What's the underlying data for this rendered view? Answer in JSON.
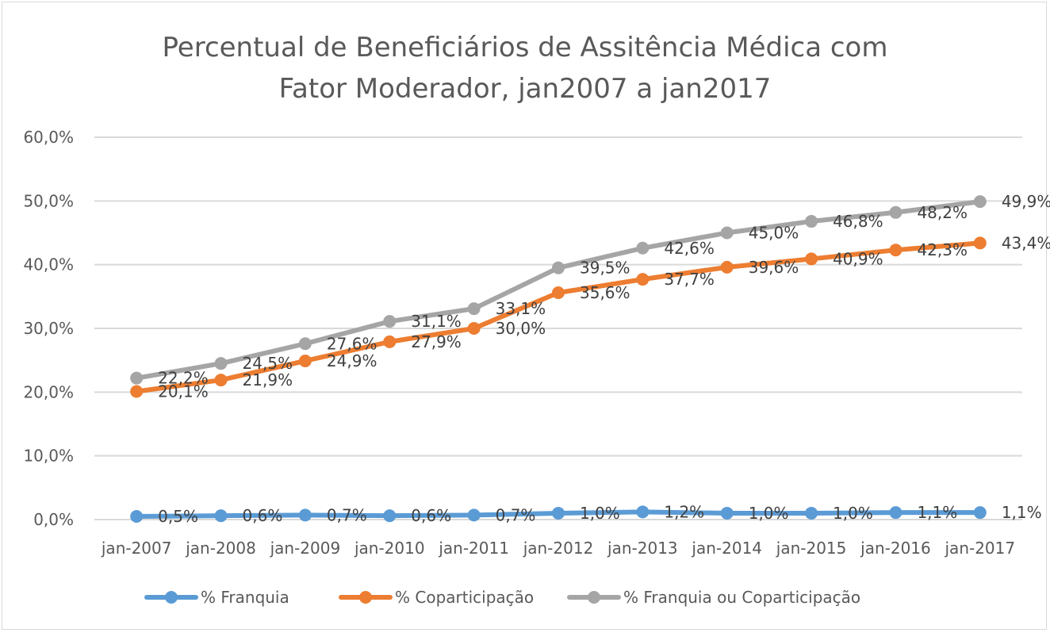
{
  "chart_data": {
    "type": "line",
    "title_lines": [
      "Percentual de Beneficiários de Assitência Médica com",
      "Fator Moderador, jan2007 a jan2017"
    ],
    "categories": [
      "jan-2007",
      "jan-2008",
      "jan-2009",
      "jan-2010",
      "jan-2011",
      "jan-2012",
      "jan-2013",
      "jan-2014",
      "jan-2015",
      "jan-2016",
      "jan-2017"
    ],
    "y_ticks": [
      "0,0%",
      "10,0%",
      "20,0%",
      "30,0%",
      "40,0%",
      "50,0%",
      "60,0%"
    ],
    "ylim": [
      0,
      60
    ],
    "grid": true,
    "legend_position": "bottom",
    "series": [
      {
        "name": "% Franquia",
        "color": "#5B9BD5",
        "values": [
          0.5,
          0.6,
          0.7,
          0.6,
          0.7,
          1.0,
          1.2,
          1.0,
          1.0,
          1.1,
          1.1
        ],
        "labels": [
          "0,5%",
          "0,6%",
          "0,7%",
          "0,6%",
          "0,7%",
          "1,0%",
          "1,2%",
          "1,0%",
          "1,0%",
          "1,1%",
          "1,1%"
        ]
      },
      {
        "name": "% Coparticipação",
        "color": "#ED7D31",
        "values": [
          20.1,
          21.9,
          24.9,
          27.9,
          30.0,
          35.6,
          37.7,
          39.6,
          40.9,
          42.3,
          43.4
        ],
        "labels": [
          "20,1%",
          "21,9%",
          "24,9%",
          "27,9%",
          "30,0%",
          "35,6%",
          "37,7%",
          "39,6%",
          "40,9%",
          "42,3%",
          "43,4%"
        ]
      },
      {
        "name": "% Franquia ou Coparticipação",
        "color": "#A5A5A5",
        "values": [
          22.2,
          24.5,
          27.6,
          31.1,
          33.1,
          39.5,
          42.6,
          45.0,
          46.8,
          48.2,
          49.9
        ],
        "labels": [
          "22,2%",
          "24,5%",
          "27,6%",
          "31,1%",
          "33,1%",
          "39,5%",
          "42,6%",
          "45,0%",
          "46,8%",
          "48,2%",
          "49,9%"
        ]
      }
    ]
  }
}
